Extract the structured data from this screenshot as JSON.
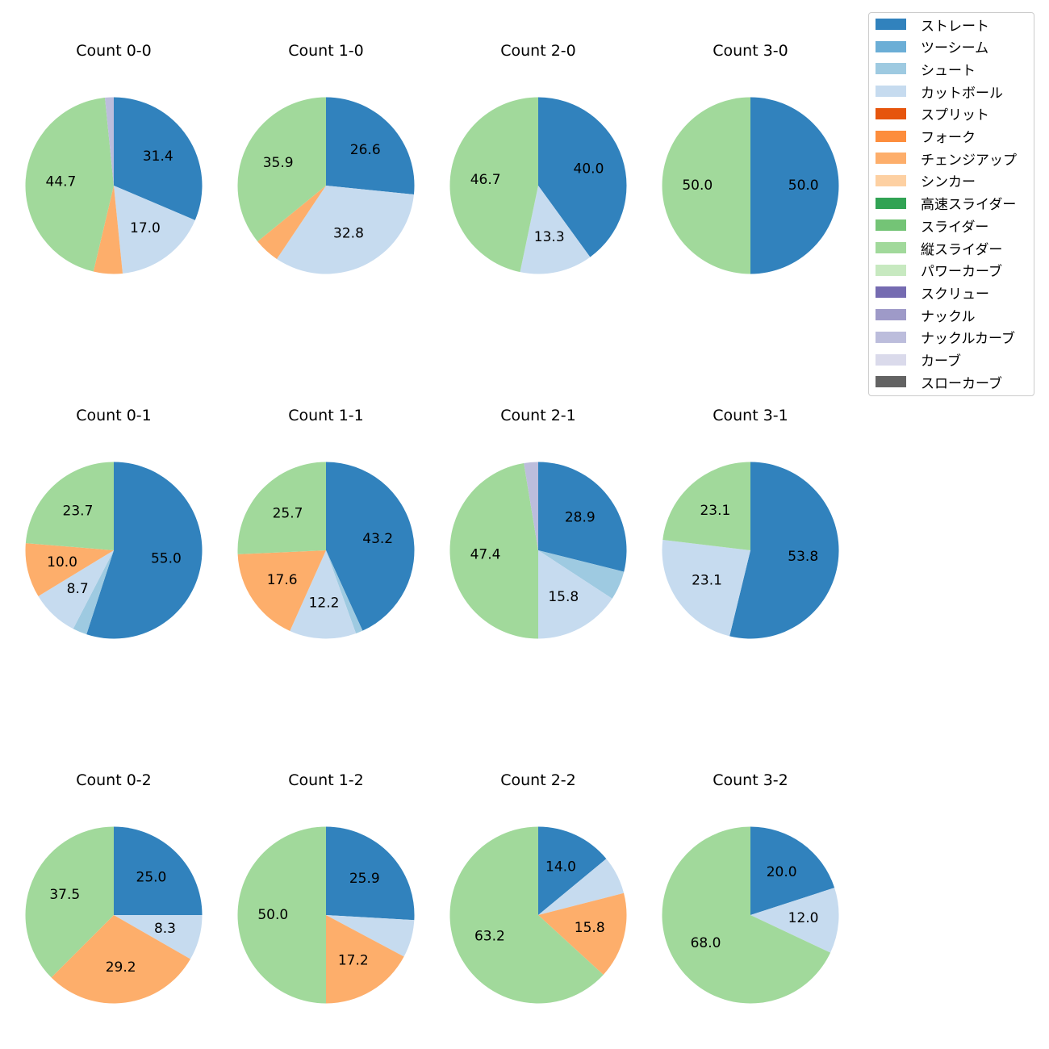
{
  "chart_data": {
    "type": "pie",
    "legend_position": "top-right",
    "legend": [
      {
        "label": "ストレート",
        "color": "#3182bd"
      },
      {
        "label": "ツーシーム",
        "color": "#6baed6"
      },
      {
        "label": "シュート",
        "color": "#9ecae1"
      },
      {
        "label": "カットボール",
        "color": "#c6dbef"
      },
      {
        "label": "スプリット",
        "color": "#e6550d"
      },
      {
        "label": "フォーク",
        "color": "#fd8d3c"
      },
      {
        "label": "チェンジアップ",
        "color": "#fdae6b"
      },
      {
        "label": "シンカー",
        "color": "#fdd0a2"
      },
      {
        "label": "高速スライダー",
        "color": "#31a354"
      },
      {
        "label": "スライダー",
        "color": "#74c476"
      },
      {
        "label": "縦スライダー",
        "color": "#a1d99b"
      },
      {
        "label": "パワーカーブ",
        "color": "#c7e9c0"
      },
      {
        "label": "スクリュー",
        "color": "#756bb1"
      },
      {
        "label": "ナックル",
        "color": "#9e9ac8"
      },
      {
        "label": "ナックルカーブ",
        "color": "#bcbddc"
      },
      {
        "label": "カーブ",
        "color": "#dadaeb"
      },
      {
        "label": "スローカーブ",
        "color": "#636363"
      }
    ],
    "charts": [
      {
        "title": "Count 0-0",
        "slices": [
          {
            "pitch": "ストレート",
            "value": 31.4,
            "label": "31.4"
          },
          {
            "pitch": "カットボール",
            "value": 17.0,
            "label": "17.0"
          },
          {
            "pitch": "チェンジアップ",
            "value": 5.3,
            "label": ""
          },
          {
            "pitch": "縦スライダー",
            "value": 44.7,
            "label": "44.7"
          },
          {
            "pitch": "ナックルカーブ",
            "value": 1.6,
            "label": ""
          }
        ]
      },
      {
        "title": "Count 1-0",
        "slices": [
          {
            "pitch": "ストレート",
            "value": 26.6,
            "label": "26.6"
          },
          {
            "pitch": "カットボール",
            "value": 32.8,
            "label": "32.8"
          },
          {
            "pitch": "チェンジアップ",
            "value": 4.7,
            "label": ""
          },
          {
            "pitch": "縦スライダー",
            "value": 35.9,
            "label": "35.9"
          }
        ]
      },
      {
        "title": "Count 2-0",
        "slices": [
          {
            "pitch": "ストレート",
            "value": 40.0,
            "label": "40.0"
          },
          {
            "pitch": "カットボール",
            "value": 13.3,
            "label": "13.3"
          },
          {
            "pitch": "縦スライダー",
            "value": 46.7,
            "label": "46.7"
          }
        ]
      },
      {
        "title": "Count 3-0",
        "slices": [
          {
            "pitch": "ストレート",
            "value": 50.0,
            "label": "50.0"
          },
          {
            "pitch": "縦スライダー",
            "value": 50.0,
            "label": "50.0"
          }
        ]
      },
      {
        "title": "Count 0-1",
        "slices": [
          {
            "pitch": "ストレート",
            "value": 55.0,
            "label": "55.0"
          },
          {
            "pitch": "シュート",
            "value": 2.6,
            "label": ""
          },
          {
            "pitch": "カットボール",
            "value": 8.7,
            "label": "8.7"
          },
          {
            "pitch": "チェンジアップ",
            "value": 10.0,
            "label": "10.0"
          },
          {
            "pitch": "縦スライダー",
            "value": 23.7,
            "label": "23.7"
          }
        ]
      },
      {
        "title": "Count 1-1",
        "slices": [
          {
            "pitch": "ストレート",
            "value": 43.2,
            "label": "43.2"
          },
          {
            "pitch": "シュート",
            "value": 1.3,
            "label": ""
          },
          {
            "pitch": "カットボール",
            "value": 12.2,
            "label": "12.2"
          },
          {
            "pitch": "チェンジアップ",
            "value": 17.6,
            "label": "17.6"
          },
          {
            "pitch": "縦スライダー",
            "value": 25.7,
            "label": "25.7"
          }
        ]
      },
      {
        "title": "Count 2-1",
        "slices": [
          {
            "pitch": "ストレート",
            "value": 28.9,
            "label": "28.9"
          },
          {
            "pitch": "シュート",
            "value": 5.3,
            "label": ""
          },
          {
            "pitch": "カットボール",
            "value": 15.8,
            "label": "15.8"
          },
          {
            "pitch": "縦スライダー",
            "value": 47.4,
            "label": "47.4"
          },
          {
            "pitch": "ナックルカーブ",
            "value": 2.6,
            "label": ""
          }
        ]
      },
      {
        "title": "Count 3-1",
        "slices": [
          {
            "pitch": "ストレート",
            "value": 53.8,
            "label": "53.8"
          },
          {
            "pitch": "カットボール",
            "value": 23.1,
            "label": "23.1"
          },
          {
            "pitch": "縦スライダー",
            "value": 23.1,
            "label": "23.1"
          }
        ]
      },
      {
        "title": "Count 0-2",
        "slices": [
          {
            "pitch": "ストレート",
            "value": 25.0,
            "label": "25.0"
          },
          {
            "pitch": "カットボール",
            "value": 8.3,
            "label": "8.3"
          },
          {
            "pitch": "チェンジアップ",
            "value": 29.2,
            "label": "29.2"
          },
          {
            "pitch": "縦スライダー",
            "value": 37.5,
            "label": "37.5"
          }
        ]
      },
      {
        "title": "Count 1-2",
        "slices": [
          {
            "pitch": "ストレート",
            "value": 25.9,
            "label": "25.9"
          },
          {
            "pitch": "カットボール",
            "value": 6.9,
            "label": ""
          },
          {
            "pitch": "チェンジアップ",
            "value": 17.2,
            "label": "17.2"
          },
          {
            "pitch": "縦スライダー",
            "value": 50.0,
            "label": "50.0"
          }
        ]
      },
      {
        "title": "Count 2-2",
        "slices": [
          {
            "pitch": "ストレート",
            "value": 14.0,
            "label": "14.0"
          },
          {
            "pitch": "カットボール",
            "value": 7.0,
            "label": ""
          },
          {
            "pitch": "チェンジアップ",
            "value": 15.8,
            "label": "15.8"
          },
          {
            "pitch": "縦スライダー",
            "value": 63.2,
            "label": "63.2"
          }
        ]
      },
      {
        "title": "Count 3-2",
        "slices": [
          {
            "pitch": "ストレート",
            "value": 20.0,
            "label": "20.0"
          },
          {
            "pitch": "カットボール",
            "value": 12.0,
            "label": "12.0"
          },
          {
            "pitch": "縦スライダー",
            "value": 68.0,
            "label": "68.0"
          }
        ]
      }
    ]
  }
}
